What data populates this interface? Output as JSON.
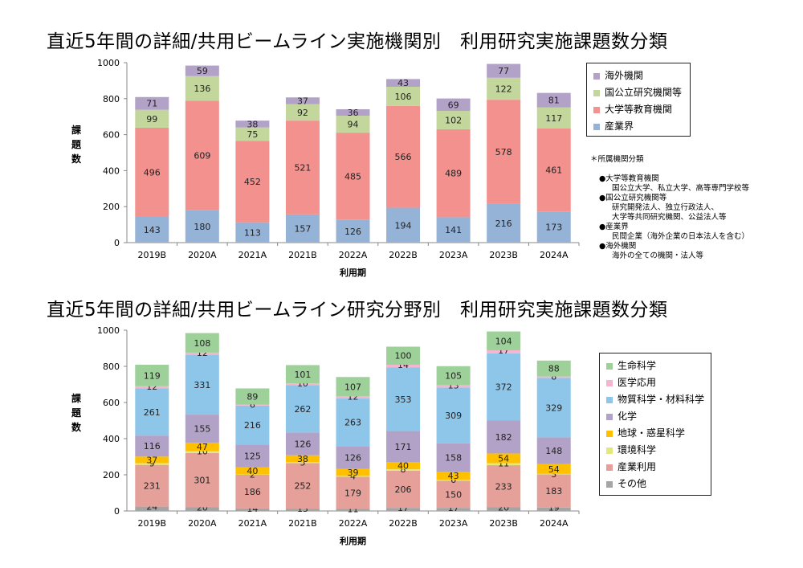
{
  "chart_data": [
    {
      "type": "bar",
      "stacked": true,
      "title": "直近5年間の詳細/共用ビームライン実施機関別　利用研究実施課題数分類",
      "xlabel": "利用期",
      "ylabel": "課題数",
      "ylim": [
        0,
        1000
      ],
      "yticks": [
        0,
        200,
        400,
        600,
        800,
        1000
      ],
      "categories": [
        "2019B",
        "2020A",
        "2021A",
        "2021B",
        "2022A",
        "2022B",
        "2023A",
        "2023B",
        "2024A"
      ],
      "series": [
        {
          "name": "産業界",
          "color": "#95b3d7",
          "values": [
            143,
            180,
            113,
            157,
            126,
            194,
            141,
            216,
            173
          ]
        },
        {
          "name": "大学等教育機関",
          "color": "#f2918d",
          "values": [
            496,
            609,
            452,
            521,
            485,
            566,
            489,
            578,
            461
          ]
        },
        {
          "name": "国公立研究機関等",
          "color": "#c3d69b",
          "values": [
            99,
            136,
            75,
            92,
            94,
            106,
            102,
            122,
            117
          ]
        },
        {
          "name": "海外機関",
          "color": "#b3a2c7",
          "values": [
            71,
            59,
            38,
            37,
            36,
            43,
            69,
            77,
            81
          ]
        }
      ],
      "legend_position": "right",
      "note_title": "＊所属機関分類",
      "notes": [
        {
          "head": "●大学等教育機関",
          "lines": [
            "国公立大学、私立大学、高等専門学校等"
          ]
        },
        {
          "head": "●国公立研究機関等",
          "lines": [
            "研究開発法人、独立行政法人、",
            "大学等共同研究機関、公益法人等"
          ]
        },
        {
          "head": "●産業界",
          "lines": [
            "民間企業（海外企業の日本法人を含む）"
          ]
        },
        {
          "head": "●海外機関",
          "lines": [
            "海外の全ての機関・法人等"
          ]
        }
      ]
    },
    {
      "type": "bar",
      "stacked": true,
      "title": "直近5年間の詳細/共用ビームライン研究分野別　利用研究実施課題数分類",
      "xlabel": "利用期",
      "ylabel": "課題数",
      "ylim": [
        0,
        1000
      ],
      "yticks": [
        0,
        200,
        400,
        600,
        800,
        1000
      ],
      "categories": [
        "2019B",
        "2020A",
        "2021A",
        "2021B",
        "2022A",
        "2022B",
        "2023A",
        "2023B",
        "2024A"
      ],
      "series": [
        {
          "name": "その他",
          "color": "#a5a5a5",
          "values": [
            24,
            20,
            14,
            13,
            11,
            17,
            17,
            20,
            19
          ]
        },
        {
          "name": "産業利用",
          "color": "#e6a09a",
          "values": [
            231,
            301,
            186,
            252,
            179,
            206,
            150,
            233,
            183
          ]
        },
        {
          "name": "環境科学",
          "color": "#e3e87a",
          "values": [
            9,
            10,
            2,
            5,
            4,
            8,
            6,
            11,
            3
          ]
        },
        {
          "name": "地球・惑星科学",
          "color": "#ffc000",
          "values": [
            37,
            47,
            40,
            38,
            39,
            40,
            43,
            54,
            54
          ]
        },
        {
          "name": "化学",
          "color": "#b3a2c7",
          "values": [
            116,
            155,
            125,
            126,
            126,
            171,
            158,
            182,
            148
          ]
        },
        {
          "name": "物質科学・材料科学",
          "color": "#8ec6ea",
          "values": [
            261,
            331,
            216,
            262,
            263,
            353,
            309,
            372,
            329
          ]
        },
        {
          "name": "医学応用",
          "color": "#f4b6cf",
          "values": [
            12,
            12,
            6,
            10,
            12,
            14,
            13,
            17,
            8
          ]
        },
        {
          "name": "生命科学",
          "color": "#9ed19a",
          "values": [
            119,
            108,
            89,
            101,
            107,
            100,
            105,
            104,
            88
          ]
        }
      ],
      "legend_position": "right"
    }
  ]
}
